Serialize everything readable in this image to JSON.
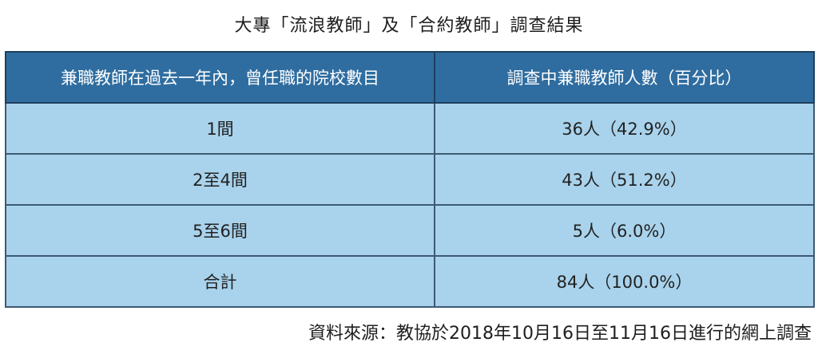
{
  "title": "大專「流浪教師」及「合約教師」調查結果",
  "table": {
    "headers": [
      "兼職教師在過去一年內，曾任職的院校數目",
      "調查中兼職教師人數（百分比）"
    ],
    "rows": [
      [
        "1間",
        "36人（42.9%）"
      ],
      [
        "2至4間",
        "43人（51.2%）"
      ],
      [
        "5至6間",
        "5人（6.0%）"
      ],
      [
        "合計",
        "84人（100.0%）"
      ]
    ]
  },
  "footnote": "資料來源：教協於2018年10月16日至11月16日進行的網上調查",
  "colors": {
    "header_bg": "#2f6da0",
    "cell_bg": "#a9d3ec",
    "header_text": "#ffffff"
  }
}
